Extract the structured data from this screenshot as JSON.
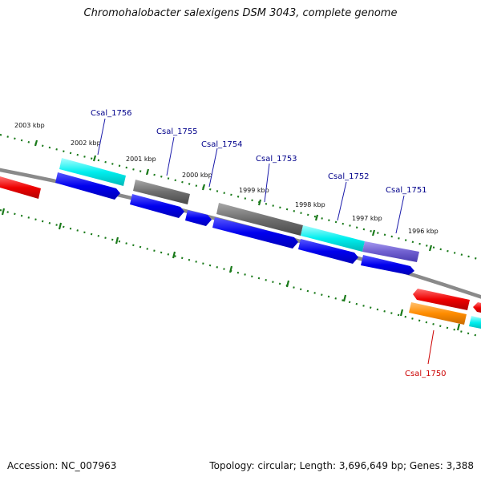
{
  "title": "Chromohalobacter salexigens DSM 3043, complete genome",
  "footer": {
    "accession": "Accession: NC_007963",
    "summary": "Topology: circular; Length: 3,696,649 bp; Genes: 3,388"
  },
  "colors": {
    "backbone": "#808080",
    "tick": "#1a7a1a",
    "cds": "#0000ee",
    "gene_cyan": "#00e0e0",
    "gene_gray": "#6e6e6e",
    "gene_purple": "#7060d0",
    "gene_red": "#ee0000",
    "gene_orange": "#ff8c00",
    "label_blue": "#00008b",
    "label_red": "#cc0000"
  },
  "kbp_labels": [
    "2003 kbp",
    "2002 kbp",
    "2001 kbp",
    "2000 kbp",
    "1999 kbp",
    "1998 kbp",
    "1997 kbp",
    "1996 kbp"
  ],
  "gene_labels": [
    "Csal_1756",
    "Csal_1755",
    "Csal_1754",
    "Csal_1753",
    "Csal_1752",
    "Csal_1751",
    "Csal_1750"
  ],
  "features": [
    {
      "strand": "reverse",
      "kind": "cds",
      "color": "gene_red",
      "label": null
    },
    {
      "strand": "forward",
      "kind": "gene",
      "color": "gene_cyan",
      "label": "Csal_1756"
    },
    {
      "strand": "forward",
      "kind": "cds",
      "color": "cds",
      "label": "Csal_1756"
    },
    {
      "strand": "forward",
      "kind": "gene",
      "color": "gene_gray",
      "label": "Csal_1755"
    },
    {
      "strand": "forward",
      "kind": "cds",
      "color": "cds",
      "label": "Csal_1755"
    },
    {
      "strand": "forward",
      "kind": "cds",
      "color": "cds",
      "label": "Csal_1754"
    },
    {
      "strand": "forward",
      "kind": "gene",
      "color": "gene_gray",
      "label": "Csal_1753"
    },
    {
      "strand": "forward",
      "kind": "cds",
      "color": "cds",
      "label": "Csal_1753"
    },
    {
      "strand": "forward",
      "kind": "gene",
      "color": "gene_cyan",
      "label": "Csal_1752"
    },
    {
      "strand": "forward",
      "kind": "cds",
      "color": "cds",
      "label": "Csal_1752"
    },
    {
      "strand": "forward",
      "kind": "gene",
      "color": "gene_purple",
      "label": "Csal_1751"
    },
    {
      "strand": "forward",
      "kind": "cds",
      "color": "cds",
      "label": "Csal_1751"
    },
    {
      "strand": "reverse",
      "kind": "cds",
      "color": "gene_red",
      "label": "Csal_1750"
    },
    {
      "strand": "reverse",
      "kind": "gene",
      "color": "gene_orange",
      "label": "Csal_1750"
    },
    {
      "strand": "reverse",
      "kind": "cds",
      "color": "gene_red",
      "label": null
    },
    {
      "strand": "reverse",
      "kind": "gene",
      "color": "gene_cyan",
      "label": null
    }
  ]
}
